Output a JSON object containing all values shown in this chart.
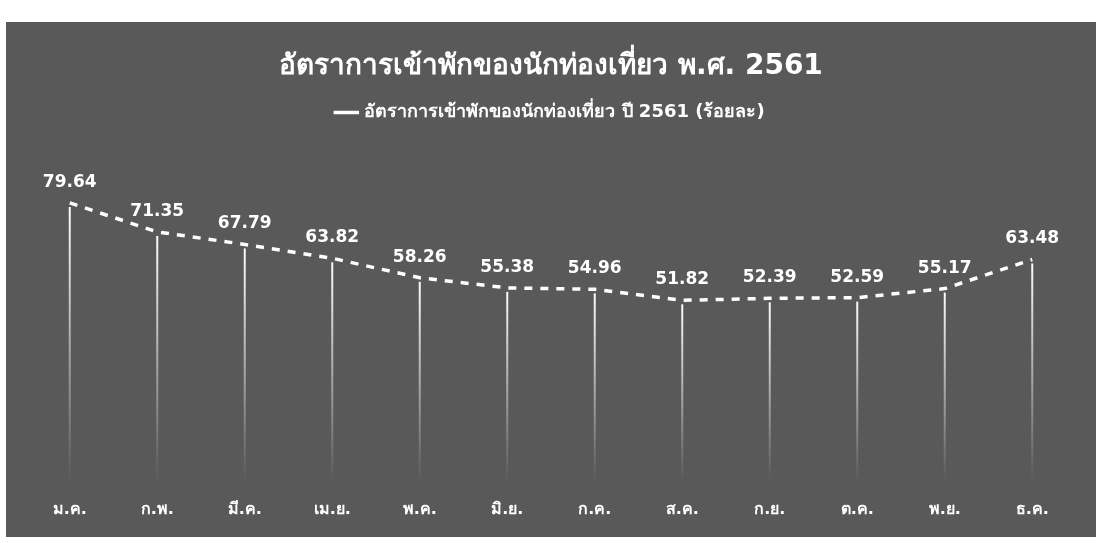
{
  "chart_data": {
    "type": "line",
    "title": "อัตราการเข้าพักของนักท่องเที่ยว พ.ศ. 2561",
    "categories": [
      "ม.ค.",
      "ก.พ.",
      "มี.ค.",
      "เม.ย.",
      "พ.ค.",
      "มิ.ย.",
      "ก.ค.",
      "ส.ค.",
      "ก.ย.",
      "ต.ค.",
      "พ.ย.",
      "ธ.ค."
    ],
    "series": [
      {
        "name": "อัตราการเข้าพักของนักท่องเที่ยว ปี 2561 (ร้อยละ)",
        "color": "#ffffff",
        "values": [
          79.64,
          71.35,
          67.79,
          63.82,
          58.26,
          55.38,
          54.96,
          51.82,
          52.39,
          52.59,
          55.17,
          63.48
        ]
      }
    ],
    "data_labels": true,
    "legend": "top",
    "line_style": "dashed",
    "marker": "none",
    "grid": "x",
    "tick_labels": "x"
  }
}
